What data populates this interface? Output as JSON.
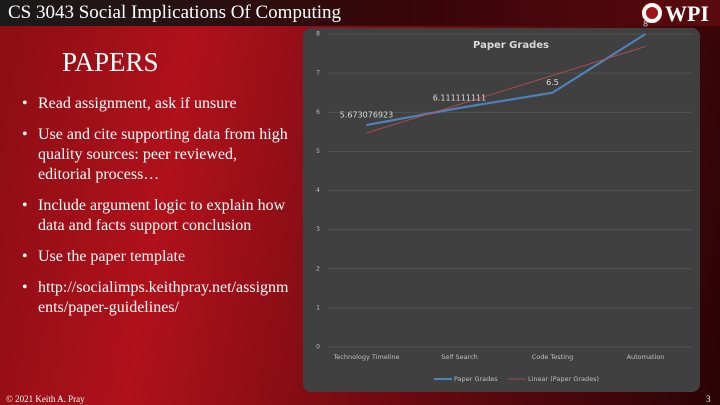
{
  "header": {
    "title": "CS 3043 Social Implications Of Computing",
    "logo_text": "WPI"
  },
  "slide": {
    "title": "PAPERS",
    "bullets": [
      "Read assignment, ask if unsure",
      "Use and cite supporting data from high quality sources: peer reviewed, editorial process…",
      "Include argument logic to explain how data and facts support conclusion",
      "Use the paper template",
      "http://socialimps.keithpray.net/assignments/paper-guidelines/"
    ]
  },
  "footer": {
    "copyright": "© 2021 Keith A. Pray",
    "page": "3"
  },
  "chart_data": {
    "type": "line",
    "title": "Paper Grades",
    "categories": [
      "Technology Timeline",
      "Self Search",
      "Code Testing",
      "Automation"
    ],
    "series": [
      {
        "name": "Paper Grades",
        "color": "#4f81bd",
        "values": [
          5.673076923,
          6.111111111,
          6.5,
          8
        ]
      },
      {
        "name": "Linear (Paper Grades)",
        "color": "#c0504d",
        "values": [
          5.47,
          6.2,
          6.94,
          7.68
        ]
      }
    ],
    "ylim": [
      0,
      8
    ],
    "yticks": [
      0,
      1,
      2,
      3,
      4,
      5,
      6,
      7,
      8
    ],
    "grid": true
  }
}
